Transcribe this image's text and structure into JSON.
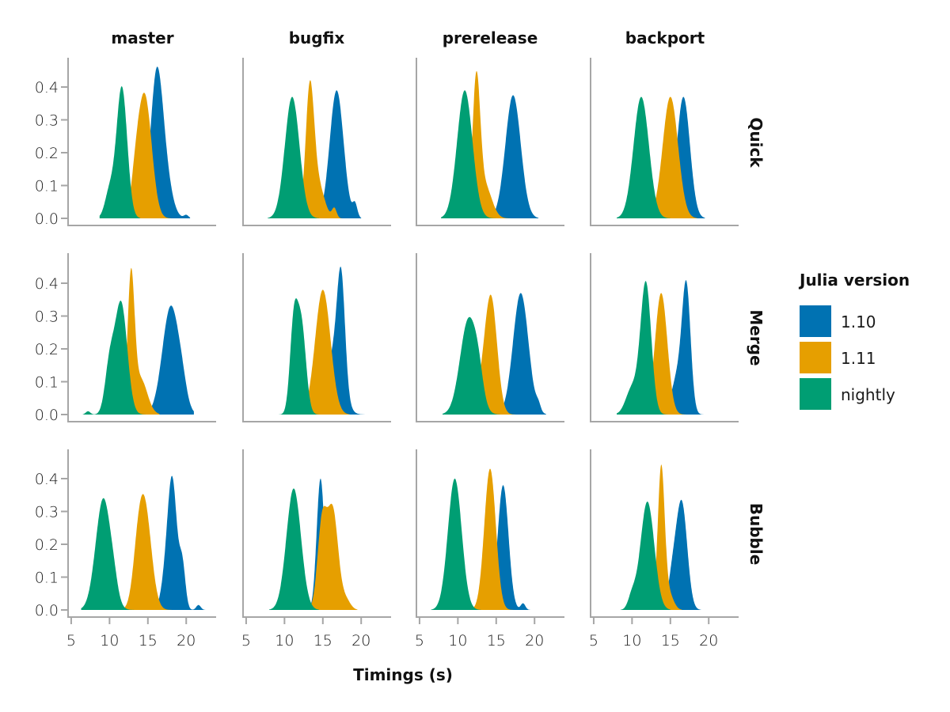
{
  "chart_data": {
    "type": "area",
    "subtype": "faceted density plot",
    "xlabel": "Timings (s)",
    "ylabel": "",
    "xlim": [
      4.8,
      23.9
    ],
    "ylim": [
      0,
      0.48
    ],
    "xticks": [
      5,
      10,
      15,
      20
    ],
    "yticks": [
      0.0,
      0.1,
      0.2,
      0.3,
      0.4
    ],
    "ytick_labels": [
      "0.0",
      "0.1",
      "0.2",
      "0.3",
      "0.4"
    ],
    "columns": [
      "master",
      "bugfix",
      "prerelease",
      "backport"
    ],
    "rows": [
      "Quick",
      "Merge",
      "Bubble"
    ],
    "legend": {
      "title": "Julia version",
      "placement": "right",
      "entries": [
        {
          "name": "1.10",
          "color": "#0072B2"
        },
        {
          "name": "1.11",
          "color": "#E69F00"
        },
        {
          "name": "nightly",
          "color": "#009E73"
        }
      ]
    },
    "draw_order": [
      "1.10",
      "1.11",
      "nightly"
    ],
    "panels": [
      {
        "row": "Quick",
        "column": "master",
        "series": [
          {
            "name": "1.10",
            "components": [
              [
                16.1,
                0.8,
                0.4
              ],
              [
                17.2,
                0.9,
                0.12
              ],
              [
                20.0,
                0.3,
                0.01
              ]
            ],
            "range": [
              13.0,
              20.5
            ]
          },
          {
            "name": "1.11",
            "components": [
              [
                14.6,
                0.9,
                0.37
              ],
              [
                13.4,
                0.6,
                0.08
              ]
            ],
            "range": [
              11.5,
              18.0
            ]
          },
          {
            "name": "nightly",
            "components": [
              [
                11.6,
                0.7,
                0.4
              ],
              [
                10.0,
                0.6,
                0.08
              ]
            ],
            "range": [
              8.7,
              14.0
            ]
          }
        ]
      },
      {
        "row": "Quick",
        "column": "bugfix",
        "series": [
          {
            "name": "1.10",
            "components": [
              [
                16.8,
                0.9,
                0.39
              ],
              [
                19.2,
                0.3,
                0.04
              ]
            ],
            "range": [
              13.5,
              20.0
            ]
          },
          {
            "name": "1.11",
            "components": [
              [
                13.3,
                0.55,
                0.38
              ],
              [
                14.4,
                0.8,
                0.1
              ],
              [
                16.5,
                0.3,
                0.03
              ]
            ],
            "range": [
              11.0,
              17.5
            ]
          },
          {
            "name": "nightly",
            "components": [
              [
                11.0,
                0.95,
                0.37
              ]
            ],
            "range": [
              7.8,
              14.5
            ]
          }
        ]
      },
      {
        "row": "Quick",
        "column": "prerelease",
        "series": [
          {
            "name": "1.10",
            "components": [
              [
                17.2,
                1.0,
                0.375
              ]
            ],
            "range": [
              14.0,
              20.5
            ]
          },
          {
            "name": "1.11",
            "components": [
              [
                12.4,
                0.5,
                0.4
              ],
              [
                13.5,
                0.9,
                0.1
              ]
            ],
            "range": [
              10.5,
              17.0
            ]
          },
          {
            "name": "nightly",
            "components": [
              [
                10.9,
                1.0,
                0.39
              ]
            ],
            "range": [
              7.8,
              15.0
            ]
          }
        ]
      },
      {
        "row": "Quick",
        "column": "backport",
        "series": [
          {
            "name": "1.10",
            "components": [
              [
                16.7,
                0.85,
                0.37
              ]
            ],
            "range": [
              13.5,
              19.5
            ]
          },
          {
            "name": "1.11",
            "components": [
              [
                15.0,
                1.0,
                0.37
              ]
            ],
            "range": [
              11.5,
              18.5
            ]
          },
          {
            "name": "nightly",
            "components": [
              [
                11.2,
                1.0,
                0.37
              ]
            ],
            "range": [
              8.0,
              15.0
            ]
          }
        ]
      },
      {
        "row": "Merge",
        "column": "master",
        "series": [
          {
            "name": "1.10",
            "components": [
              [
                18.0,
                1.1,
                0.33
              ],
              [
                19.5,
                0.6,
                0.04
              ]
            ],
            "range": [
              14.5,
              21.0
            ]
          },
          {
            "name": "1.11",
            "components": [
              [
                12.8,
                0.45,
                0.4
              ],
              [
                14.0,
                0.9,
                0.11
              ]
            ],
            "range": [
              11.5,
              16.5
            ]
          },
          {
            "name": "nightly",
            "components": [
              [
                11.5,
                0.8,
                0.34
              ],
              [
                10.0,
                0.6,
                0.14
              ],
              [
                7.2,
                0.3,
                0.01
              ]
            ],
            "range": [
              6.5,
              15.0
            ]
          }
        ]
      },
      {
        "row": "Merge",
        "column": "bugfix",
        "series": [
          {
            "name": "1.10",
            "components": [
              [
                17.4,
                0.5,
                0.3
              ],
              [
                16.6,
                1.0,
                0.2
              ]
            ],
            "range": [
              13.5,
              20.5
            ]
          },
          {
            "name": "1.11",
            "components": [
              [
                15.0,
                1.0,
                0.38
              ]
            ],
            "range": [
              11.5,
              18.5
            ]
          },
          {
            "name": "nightly",
            "components": [
              [
                11.2,
                0.5,
                0.26
              ],
              [
                12.2,
                0.6,
                0.27
              ]
            ],
            "range": [
              8.0,
              15.5
            ]
          }
        ]
      },
      {
        "row": "Merge",
        "column": "prerelease",
        "series": [
          {
            "name": "1.10",
            "components": [
              [
                18.2,
                1.0,
                0.37
              ],
              [
                20.5,
                0.3,
                0.02
              ]
            ],
            "range": [
              15.0,
              21.5
            ]
          },
          {
            "name": "1.11",
            "components": [
              [
                14.3,
                0.8,
                0.36
              ],
              [
                13.0,
                0.6,
                0.05
              ]
            ],
            "range": [
              11.0,
              17.5
            ]
          },
          {
            "name": "nightly",
            "components": [
              [
                11.4,
                1.1,
                0.29
              ],
              [
                12.7,
                0.6,
                0.06
              ]
            ],
            "range": [
              8.0,
              15.5
            ]
          }
        ]
      },
      {
        "row": "Merge",
        "column": "backport",
        "series": [
          {
            "name": "1.10",
            "components": [
              [
                17.1,
                0.55,
                0.36
              ],
              [
                16.0,
                0.8,
                0.12
              ]
            ],
            "range": [
              14.5,
              20.5
            ]
          },
          {
            "name": "1.11",
            "components": [
              [
                13.8,
                0.8,
                0.37
              ]
            ],
            "range": [
              11.0,
              17.0
            ]
          },
          {
            "name": "nightly",
            "components": [
              [
                11.8,
                0.7,
                0.4
              ],
              [
                10.0,
                0.8,
                0.08
              ]
            ],
            "range": [
              8.0,
              15.0
            ]
          }
        ]
      },
      {
        "row": "Bubble",
        "column": "master",
        "series": [
          {
            "name": "1.10",
            "components": [
              [
                18.2,
                0.6,
                0.38
              ],
              [
                19.5,
                0.4,
                0.13
              ],
              [
                17.3,
                0.6,
                0.08
              ],
              [
                21.6,
                0.3,
                0.015
              ]
            ],
            "range": [
              15.5,
              22.5
            ]
          },
          {
            "name": "1.11",
            "components": [
              [
                14.5,
                0.9,
                0.33
              ],
              [
                13.6,
                0.6,
                0.06
              ]
            ],
            "range": [
              11.5,
              18.5
            ]
          },
          {
            "name": "nightly",
            "components": [
              [
                9.2,
                1.0,
                0.34
              ],
              [
                10.6,
                0.5,
                0.03
              ]
            ],
            "range": [
              6.3,
              13.5
            ]
          }
        ]
      },
      {
        "row": "Bubble",
        "column": "bugfix",
        "series": [
          {
            "name": "1.10",
            "components": [
              [
                14.7,
                0.5,
                0.4
              ]
            ],
            "range": [
              12.5,
              17.0
            ]
          },
          {
            "name": "1.11",
            "components": [
              [
                14.9,
                0.6,
                0.26
              ],
              [
                16.3,
                0.7,
                0.3
              ],
              [
                18.0,
                0.6,
                0.03
              ]
            ],
            "range": [
              13.0,
              19.5
            ]
          },
          {
            "name": "nightly",
            "components": [
              [
                11.2,
                0.95,
                0.37
              ]
            ],
            "range": [
              8.0,
              14.5
            ]
          }
        ]
      },
      {
        "row": "Bubble",
        "column": "prerelease",
        "series": [
          {
            "name": "1.10",
            "components": [
              [
                15.9,
                0.7,
                0.38
              ],
              [
                18.5,
                0.3,
                0.02
              ]
            ],
            "range": [
              13.5,
              19.5
            ]
          },
          {
            "name": "1.11",
            "components": [
              [
                14.2,
                0.75,
                0.43
              ]
            ],
            "range": [
              11.5,
              17.5
            ]
          },
          {
            "name": "nightly",
            "components": [
              [
                9.6,
                0.9,
                0.4
              ]
            ],
            "range": [
              6.5,
              13.0
            ]
          }
        ]
      },
      {
        "row": "Bubble",
        "column": "backport",
        "series": [
          {
            "name": "1.10",
            "components": [
              [
                16.5,
                0.7,
                0.32
              ],
              [
                15.3,
                0.6,
                0.1
              ]
            ],
            "range": [
              13.5,
              19.0
            ]
          },
          {
            "name": "1.11",
            "components": [
              [
                13.8,
                0.45,
                0.43
              ],
              [
                14.8,
                0.6,
                0.05
              ]
            ],
            "range": [
              11.5,
              16.5
            ]
          },
          {
            "name": "nightly",
            "components": [
              [
                12.0,
                0.9,
                0.33
              ],
              [
                10.0,
                0.5,
                0.04
              ]
            ],
            "range": [
              8.5,
              15.0
            ]
          }
        ]
      }
    ]
  }
}
